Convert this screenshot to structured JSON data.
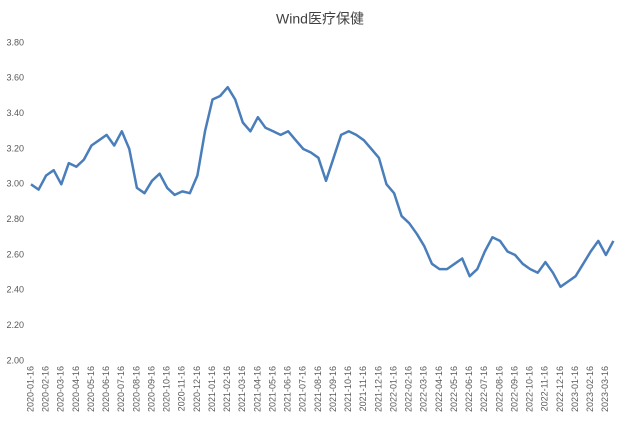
{
  "chart_data": {
    "type": "line",
    "title": "Wind医疗保健",
    "categories": [
      "2020-01-16",
      null,
      "2020-02-16",
      null,
      "2020-03-16",
      null,
      "2020-04-16",
      null,
      "2020-05-16",
      null,
      "2020-06-16",
      null,
      "2020-07-16",
      null,
      "2020-08-16",
      null,
      "2020-09-16",
      null,
      "2020-10-16",
      null,
      "2020-11-16",
      null,
      "2020-12-16",
      null,
      "2021-01-16",
      null,
      "2021-02-16",
      null,
      "2021-03-16",
      null,
      "2021-04-16",
      null,
      "2021-05-16",
      null,
      "2021-06-16",
      null,
      "2021-07-16",
      null,
      "2021-08-16",
      null,
      "2021-09-16",
      null,
      "2021-10-16",
      null,
      "2021-11-16",
      null,
      "2021-12-16",
      null,
      "2022-01-16",
      null,
      "2022-02-16",
      null,
      "2022-03-16",
      null,
      "2022-04-16",
      null,
      "2022-05-16",
      null,
      "2022-06-16",
      null,
      "2022-07-16",
      null,
      "2022-08-16",
      null,
      "2022-09-16",
      null,
      "2022-10-16",
      null,
      "2022-11-16",
      null,
      "2022-12-16",
      null,
      "2023-01-16",
      null,
      "2023-02-16",
      null,
      "2023-03-16",
      null
    ],
    "values": [
      3.0,
      2.97,
      3.05,
      3.08,
      3.0,
      3.12,
      3.1,
      3.14,
      3.22,
      3.25,
      3.28,
      3.22,
      3.3,
      3.2,
      2.98,
      2.95,
      3.02,
      3.06,
      2.98,
      2.94,
      2.96,
      2.95,
      3.05,
      3.3,
      3.48,
      3.5,
      3.55,
      3.48,
      3.35,
      3.3,
      3.38,
      3.32,
      3.3,
      3.28,
      3.3,
      3.25,
      3.2,
      3.18,
      3.15,
      3.02,
      3.15,
      3.28,
      3.3,
      3.28,
      3.25,
      3.2,
      3.15,
      3.0,
      2.95,
      2.82,
      2.78,
      2.72,
      2.65,
      2.55,
      2.52,
      2.52,
      2.55,
      2.58,
      2.48,
      2.52,
      2.62,
      2.7,
      2.68,
      2.62,
      2.6,
      2.55,
      2.52,
      2.5,
      2.56,
      2.5,
      2.42,
      2.45,
      2.48,
      2.55,
      2.62,
      2.68,
      2.6,
      2.68
    ],
    "color": "#4a7ebb",
    "ylim": [
      2,
      3.8
    ],
    "yticks": [
      {
        "value": 2,
        "label": "2.00"
      },
      {
        "value": 2.2,
        "label": "2.20"
      },
      {
        "value": 2.4,
        "label": "2.40"
      },
      {
        "value": 2.6,
        "label": "2.60"
      },
      {
        "value": 2.8,
        "label": "2.80"
      },
      {
        "value": 3,
        "label": "3.00"
      },
      {
        "value": 3.2,
        "label": "3.20"
      },
      {
        "value": 3.4,
        "label": "3.40"
      },
      {
        "value": 3.6,
        "label": "3.60"
      },
      {
        "value": 3.8,
        "label": "3.80"
      }
    ],
    "grid": true
  }
}
